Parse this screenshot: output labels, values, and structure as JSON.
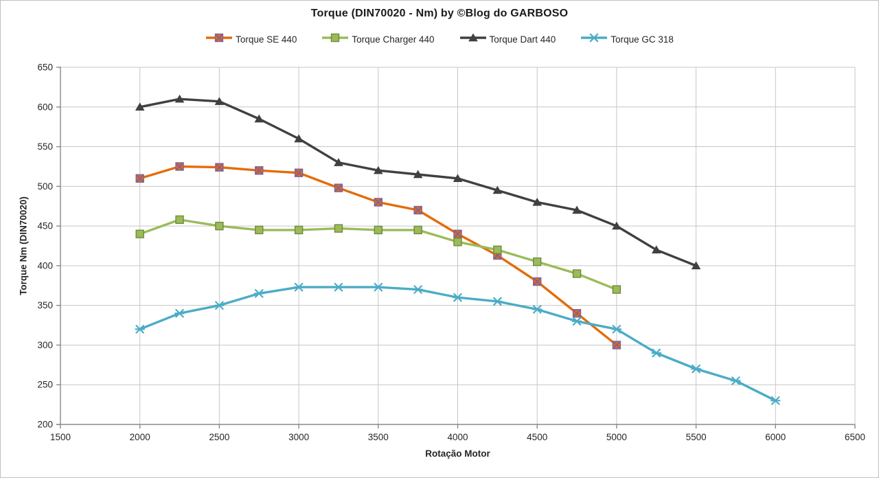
{
  "chart_data": {
    "type": "line",
    "title": "Torque (DIN70020 - Nm) by ©Blog do GARBOSO",
    "xlabel": "Rotação Motor",
    "ylabel": "Torque Nm (DIN70020)",
    "xlim": [
      1500,
      6500
    ],
    "ylim": [
      200,
      650
    ],
    "x_tick_step": 500,
    "y_tick_step": 50,
    "grid": true,
    "legend_position": "top",
    "background_color": "#ffffff",
    "gridline_color": "#c6c6c6",
    "axis_color": "#898989",
    "tick_label_color": "#262626",
    "series": [
      {
        "name": "Torque SE 440",
        "color": "#e36c0a",
        "marker": "square-x",
        "marker_accent": "#7e61a3",
        "x": [
          2000,
          2250,
          2500,
          2750,
          3000,
          3250,
          3500,
          3750,
          4000,
          4250,
          4500,
          4750,
          5000
        ],
        "values": [
          510,
          525,
          524,
          520,
          517,
          498,
          480,
          470,
          440,
          413,
          380,
          340,
          300
        ]
      },
      {
        "name": "Torque Charger 440",
        "color": "#9bbb59",
        "marker": "square",
        "marker_accent": "#71893f",
        "x": [
          2000,
          2250,
          2500,
          2750,
          3000,
          3250,
          3500,
          3750,
          4000,
          4250,
          4500,
          4750,
          5000
        ],
        "values": [
          440,
          458,
          450,
          445,
          445,
          447,
          445,
          445,
          430,
          420,
          405,
          390,
          370
        ]
      },
      {
        "name": "Torque Dart 440",
        "color": "#404040",
        "marker": "triangle",
        "marker_accent": "#404040",
        "x": [
          2000,
          2250,
          2500,
          2750,
          3000,
          3250,
          3500,
          3750,
          4000,
          4250,
          4500,
          4750,
          5000,
          5250,
          5500
        ],
        "values": [
          600,
          610,
          607,
          585,
          560,
          530,
          520,
          515,
          510,
          495,
          480,
          470,
          450,
          420,
          400
        ]
      },
      {
        "name": "Torque GC 318",
        "color": "#4bacc6",
        "marker": "x-star",
        "marker_accent": "#4bacc6",
        "x": [
          2000,
          2250,
          2500,
          2750,
          3000,
          3250,
          3500,
          3750,
          4000,
          4250,
          4500,
          4750,
          5000,
          5250,
          5500,
          5750,
          6000
        ],
        "values": [
          320,
          340,
          350,
          365,
          373,
          373,
          373,
          370,
          360,
          355,
          345,
          330,
          320,
          290,
          270,
          255,
          230
        ]
      }
    ]
  }
}
